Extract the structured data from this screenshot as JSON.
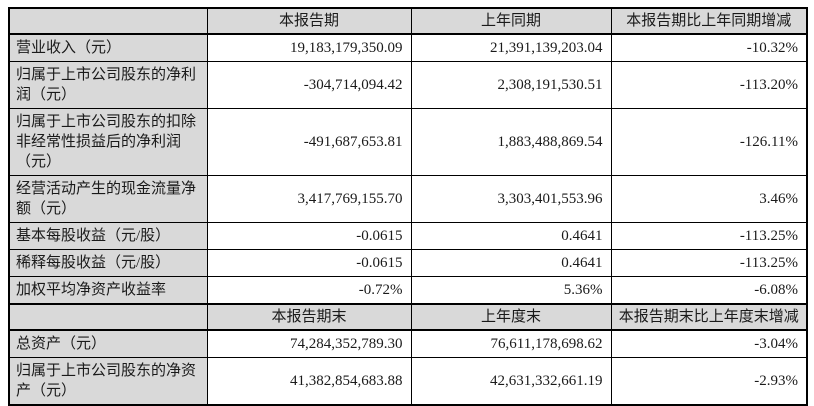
{
  "colors": {
    "border": "#000000",
    "header_bg": "#d9d9d9",
    "cell_bg": "#ffffff"
  },
  "table": {
    "header1": {
      "blank": "",
      "current": "本报告期",
      "prior": "上年同期",
      "change": "本报告期比上年同期增减"
    },
    "rows1": [
      {
        "label": "营业收入（元）",
        "current": "19,183,179,350.09",
        "prior": "21,391,139,203.04",
        "change": "-10.32%"
      },
      {
        "label": "归属于上市公司股东的净利润（元）",
        "current": "-304,714,094.42",
        "prior": "2,308,191,530.51",
        "change": "-113.20%"
      },
      {
        "label": "归属于上市公司股东的扣除非经常性损益后的净利润（元）",
        "current": "-491,687,653.81",
        "prior": "1,883,488,869.54",
        "change": "-126.11%"
      },
      {
        "label": "经营活动产生的现金流量净额（元）",
        "current": "3,417,769,155.70",
        "prior": "3,303,401,553.96",
        "change": "3.46%"
      },
      {
        "label": "基本每股收益（元/股）",
        "current": "-0.0615",
        "prior": "0.4641",
        "change": "-113.25%"
      },
      {
        "label": "稀释每股收益（元/股）",
        "current": "-0.0615",
        "prior": "0.4641",
        "change": "-113.25%"
      },
      {
        "label": "加权平均净资产收益率",
        "current": "-0.72%",
        "prior": "5.36%",
        "change": "-6.08%"
      }
    ],
    "header2": {
      "blank": "",
      "current": "本报告期末",
      "prior": "上年度末",
      "change": "本报告期末比上年度末增减"
    },
    "rows2": [
      {
        "label": "总资产（元）",
        "current": "74,284,352,789.30",
        "prior": "76,611,178,698.62",
        "change": "-3.04%"
      },
      {
        "label": "归属于上市公司股东的净资产（元）",
        "current": "41,382,854,683.88",
        "prior": "42,631,332,661.19",
        "change": "-2.93%"
      }
    ]
  }
}
